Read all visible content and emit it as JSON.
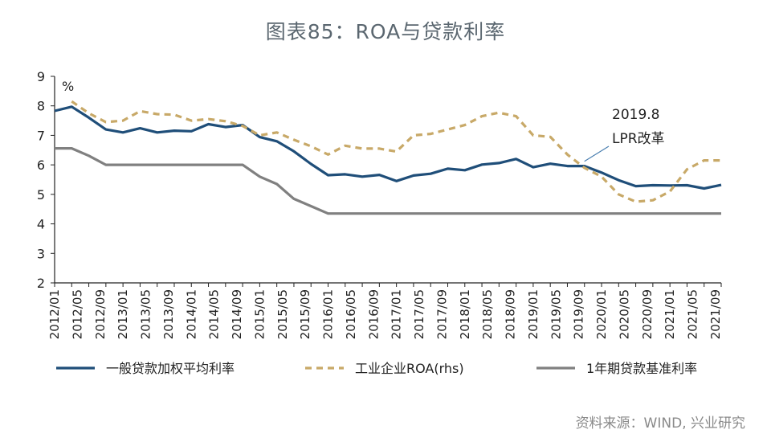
{
  "title": "图表85：ROA与贷款利率",
  "source": "资料来源：WIND, 兴业研究",
  "chart_data": {
    "type": "line",
    "y_unit": "%",
    "ylim": [
      2,
      9
    ],
    "yticks": [
      2,
      3,
      4,
      5,
      6,
      7,
      8,
      9
    ],
    "xtick_labels": [
      "2012/01",
      "2012/05",
      "2012/09",
      "2013/01",
      "2013/05",
      "2013/09",
      "2014/01",
      "2014/05",
      "2014/09",
      "2015/01",
      "2015/05",
      "2015/09",
      "2016/01",
      "2016/05",
      "2016/09",
      "2017/01",
      "2017/05",
      "2017/09",
      "2018/01",
      "2018/05",
      "2018/09",
      "2019/01",
      "2019/05",
      "2019/09",
      "2020/01",
      "2020/05",
      "2020/09",
      "2021/01",
      "2021/05",
      "2021/09"
    ],
    "annotation": {
      "line1": "2019.8",
      "line2": "LPR改革",
      "points_to": "2019/09"
    },
    "legend_position": "bottom",
    "series": [
      {
        "name": "一般贷款加权平均利率",
        "color": "#1f4e79",
        "style": "solid",
        "values": [
          7.83,
          7.97,
          7.6,
          7.2,
          7.1,
          7.24,
          7.1,
          7.16,
          7.14,
          7.38,
          7.28,
          7.35,
          6.94,
          6.8,
          6.46,
          6.03,
          5.65,
          5.68,
          5.6,
          5.66,
          5.45,
          5.64,
          5.7,
          5.87,
          5.82,
          6.01,
          6.06,
          6.2,
          5.92,
          6.04,
          5.96,
          5.96,
          5.74,
          5.48,
          5.28,
          5.31,
          5.3,
          5.31,
          5.2,
          5.32
        ]
      },
      {
        "name": "工业企业ROA(rhs)",
        "color": "#c8a968",
        "style": "dashed",
        "values": [
          null,
          8.15,
          7.75,
          7.45,
          7.5,
          7.82,
          7.72,
          7.7,
          7.5,
          7.55,
          7.48,
          7.32,
          7.0,
          7.1,
          6.85,
          6.63,
          6.35,
          6.65,
          6.55,
          6.55,
          6.45,
          7.0,
          7.05,
          7.2,
          7.35,
          7.65,
          7.77,
          7.65,
          7.0,
          6.95,
          6.35,
          5.9,
          5.6,
          5.0,
          4.75,
          4.8,
          5.1,
          5.85,
          6.15,
          6.15
        ]
      },
      {
        "name": "1年期贷款基准利率",
        "color": "#808080",
        "style": "solid",
        "values": [
          6.56,
          6.56,
          6.31,
          6.0,
          6.0,
          6.0,
          6.0,
          6.0,
          6.0,
          6.0,
          6.0,
          6.0,
          5.6,
          5.35,
          4.85,
          4.6,
          4.35,
          4.35,
          4.35,
          4.35,
          4.35,
          4.35,
          4.35,
          4.35,
          4.35,
          4.35,
          4.35,
          4.35,
          4.35,
          4.35,
          4.35,
          4.35,
          4.35,
          4.35,
          4.35,
          4.35,
          4.35,
          4.35,
          4.35,
          4.35
        ]
      }
    ]
  }
}
